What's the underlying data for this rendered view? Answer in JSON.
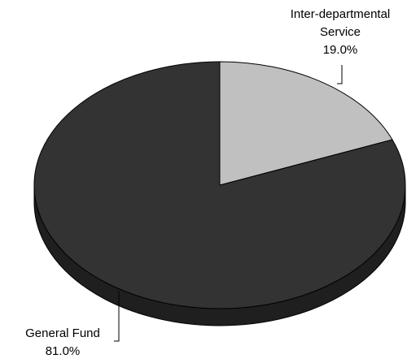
{
  "chart_data": {
    "type": "pie",
    "title": "",
    "slices": [
      {
        "label_lines": [
          "Inter-departmental",
          "Service"
        ],
        "value_label": "19.0%",
        "value": 19.0,
        "color": "#c0c0c0",
        "side_color": "#8a8a8a"
      },
      {
        "label_lines": [
          "General Fund"
        ],
        "value_label": "81.0%",
        "value": 81.0,
        "color": "#333333",
        "side_color": "#1f1f1f"
      }
    ],
    "start_angle": "12 o'clock",
    "direction": "clockwise",
    "style": "3d"
  }
}
